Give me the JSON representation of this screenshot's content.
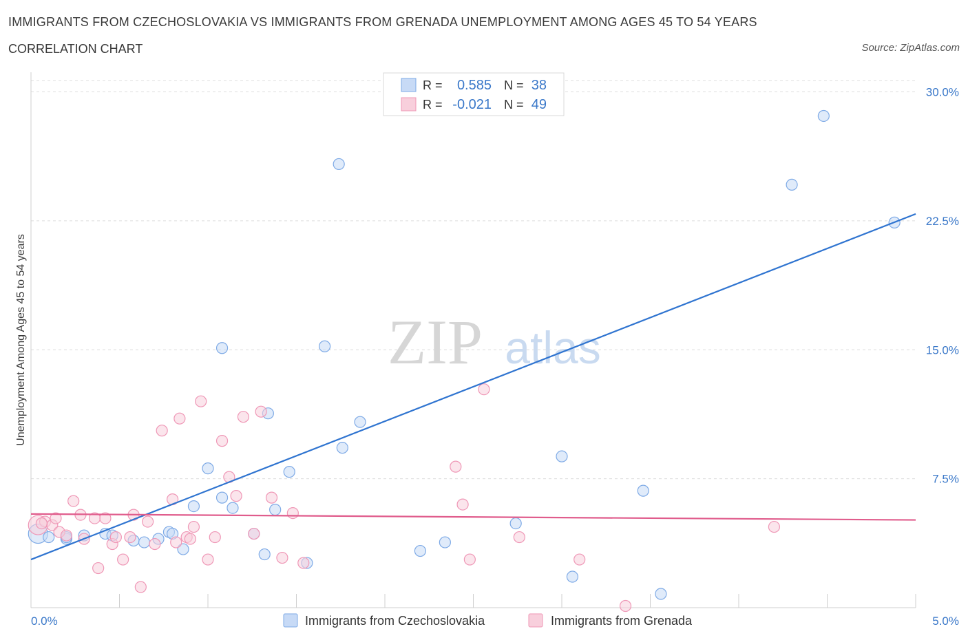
{
  "header": {
    "title": "IMMIGRANTS FROM CZECHOSLOVAKIA VS IMMIGRANTS FROM GRENADA UNEMPLOYMENT AMONG AGES 45 TO 54 YEARS",
    "subtitle": "CORRELATION CHART",
    "source": "Source: ZipAtlas.com"
  },
  "watermark": {
    "zip": "ZIP",
    "atlas": "atlas"
  },
  "colors": {
    "blue": "#7eaae6",
    "blue_fill": "#c7daf6",
    "blue_line": "#2f74d0",
    "pink": "#ef97b6",
    "pink_fill": "#f8cfdc",
    "pink_line": "#e05c8c",
    "axis_text": "#3a78c9",
    "grid": "#dcdcdc"
  },
  "stats_legend": {
    "rows": [
      {
        "r_label": "R =",
        "r_value": "0.585",
        "n_label": "N =",
        "n_value": "38"
      },
      {
        "r_label": "R =",
        "r_value": "-0.021",
        "n_label": "N =",
        "n_value": "49"
      }
    ]
  },
  "chart_data": {
    "type": "scatter",
    "title": "IMMIGRANTS FROM CZECHOSLOVAKIA VS IMMIGRANTS FROM GRENADA UNEMPLOYMENT AMONG AGES 45 TO 54 YEARS",
    "xlabel": "",
    "ylabel": "Unemployment Among Ages 45 to 54 years",
    "xlim": [
      0,
      5
    ],
    "ylim": [
      0,
      30
    ],
    "x_tick_labels": [
      "0.0%",
      "5.0%"
    ],
    "y_ticks": [
      7.5,
      15.0,
      22.5,
      30.0
    ],
    "y_tick_labels": [
      "7.5%",
      "15.0%",
      "22.5%",
      "30.0%"
    ],
    "grid": true,
    "legend_position": "bottom-center",
    "series": [
      {
        "name": "Immigrants from Czechoslovakia",
        "color": "blue",
        "trend": {
          "x": [
            0,
            5
          ],
          "y": [
            2.8,
            22.9
          ]
        },
        "points": [
          {
            "x": 0.04,
            "y": 4.3,
            "big": true
          },
          {
            "x": 0.1,
            "y": 4.1
          },
          {
            "x": 0.2,
            "y": 4.0
          },
          {
            "x": 0.3,
            "y": 4.2
          },
          {
            "x": 0.42,
            "y": 4.3
          },
          {
            "x": 0.46,
            "y": 4.2
          },
          {
            "x": 0.58,
            "y": 3.9
          },
          {
            "x": 0.64,
            "y": 3.8
          },
          {
            "x": 0.72,
            "y": 4.0
          },
          {
            "x": 0.78,
            "y": 4.4
          },
          {
            "x": 0.86,
            "y": 3.4
          },
          {
            "x": 0.92,
            "y": 5.9
          },
          {
            "x": 1.0,
            "y": 8.1
          },
          {
            "x": 1.08,
            "y": 6.4
          },
          {
            "x": 1.14,
            "y": 5.8
          },
          {
            "x": 1.26,
            "y": 4.3
          },
          {
            "x": 1.32,
            "y": 3.1
          },
          {
            "x": 1.38,
            "y": 5.7
          },
          {
            "x": 1.46,
            "y": 7.9
          },
          {
            "x": 1.56,
            "y": 2.6
          },
          {
            "x": 1.76,
            "y": 9.3
          },
          {
            "x": 2.2,
            "y": 3.3
          },
          {
            "x": 1.08,
            "y": 15.1
          },
          {
            "x": 1.34,
            "y": 11.3
          },
          {
            "x": 1.66,
            "y": 15.2
          },
          {
            "x": 1.86,
            "y": 10.8
          },
          {
            "x": 1.74,
            "y": 25.8
          },
          {
            "x": 2.34,
            "y": 3.8
          },
          {
            "x": 2.74,
            "y": 4.9
          },
          {
            "x": 3.0,
            "y": 8.8
          },
          {
            "x": 3.06,
            "y": 1.8
          },
          {
            "x": 3.46,
            "y": 6.8
          },
          {
            "x": 3.56,
            "y": 0.8
          },
          {
            "x": 4.3,
            "y": 24.6
          },
          {
            "x": 4.48,
            "y": 28.6
          },
          {
            "x": 4.88,
            "y": 22.4
          },
          {
            "x": 0.8,
            "y": 4.3
          },
          {
            "x": 0.2,
            "y": 4.1
          }
        ]
      },
      {
        "name": "Immigrants from Grenada",
        "color": "pink",
        "trend": {
          "x": [
            0,
            5
          ],
          "y": [
            5.45,
            5.1
          ]
        },
        "points": [
          {
            "x": 0.04,
            "y": 4.8,
            "big": true
          },
          {
            "x": 0.08,
            "y": 5.0
          },
          {
            "x": 0.12,
            "y": 4.8
          },
          {
            "x": 0.16,
            "y": 4.4
          },
          {
            "x": 0.2,
            "y": 4.2
          },
          {
            "x": 0.24,
            "y": 6.2
          },
          {
            "x": 0.28,
            "y": 5.4
          },
          {
            "x": 0.3,
            "y": 4.0
          },
          {
            "x": 0.36,
            "y": 5.2
          },
          {
            "x": 0.38,
            "y": 2.3
          },
          {
            "x": 0.42,
            "y": 5.2
          },
          {
            "x": 0.46,
            "y": 3.7
          },
          {
            "x": 0.52,
            "y": 2.8
          },
          {
            "x": 0.56,
            "y": 4.1
          },
          {
            "x": 0.58,
            "y": 5.4
          },
          {
            "x": 0.62,
            "y": 1.2
          },
          {
            "x": 0.66,
            "y": 5.0
          },
          {
            "x": 0.7,
            "y": 3.7
          },
          {
            "x": 0.74,
            "y": 10.3
          },
          {
            "x": 0.8,
            "y": 6.3
          },
          {
            "x": 0.84,
            "y": 11.0
          },
          {
            "x": 0.88,
            "y": 4.1
          },
          {
            "x": 0.92,
            "y": 4.7
          },
          {
            "x": 0.96,
            "y": 12.0
          },
          {
            "x": 1.0,
            "y": 2.8
          },
          {
            "x": 1.04,
            "y": 4.1
          },
          {
            "x": 1.08,
            "y": 9.7
          },
          {
            "x": 1.12,
            "y": 7.6
          },
          {
            "x": 1.16,
            "y": 6.5
          },
          {
            "x": 1.2,
            "y": 11.1
          },
          {
            "x": 1.26,
            "y": 4.3
          },
          {
            "x": 1.3,
            "y": 11.4
          },
          {
            "x": 1.36,
            "y": 6.4
          },
          {
            "x": 1.42,
            "y": 2.9
          },
          {
            "x": 1.48,
            "y": 5.5
          },
          {
            "x": 1.54,
            "y": 2.6
          },
          {
            "x": 2.4,
            "y": 8.2
          },
          {
            "x": 2.44,
            "y": 6.0
          },
          {
            "x": 2.48,
            "y": 2.8
          },
          {
            "x": 2.56,
            "y": 12.7
          },
          {
            "x": 2.76,
            "y": 4.1
          },
          {
            "x": 3.1,
            "y": 2.8
          },
          {
            "x": 3.36,
            "y": 0.1
          },
          {
            "x": 4.2,
            "y": 4.7
          },
          {
            "x": 0.9,
            "y": 4.0
          },
          {
            "x": 0.82,
            "y": 3.8
          },
          {
            "x": 0.48,
            "y": 4.1
          },
          {
            "x": 0.14,
            "y": 5.2
          },
          {
            "x": 0.06,
            "y": 4.9
          }
        ]
      }
    ]
  }
}
